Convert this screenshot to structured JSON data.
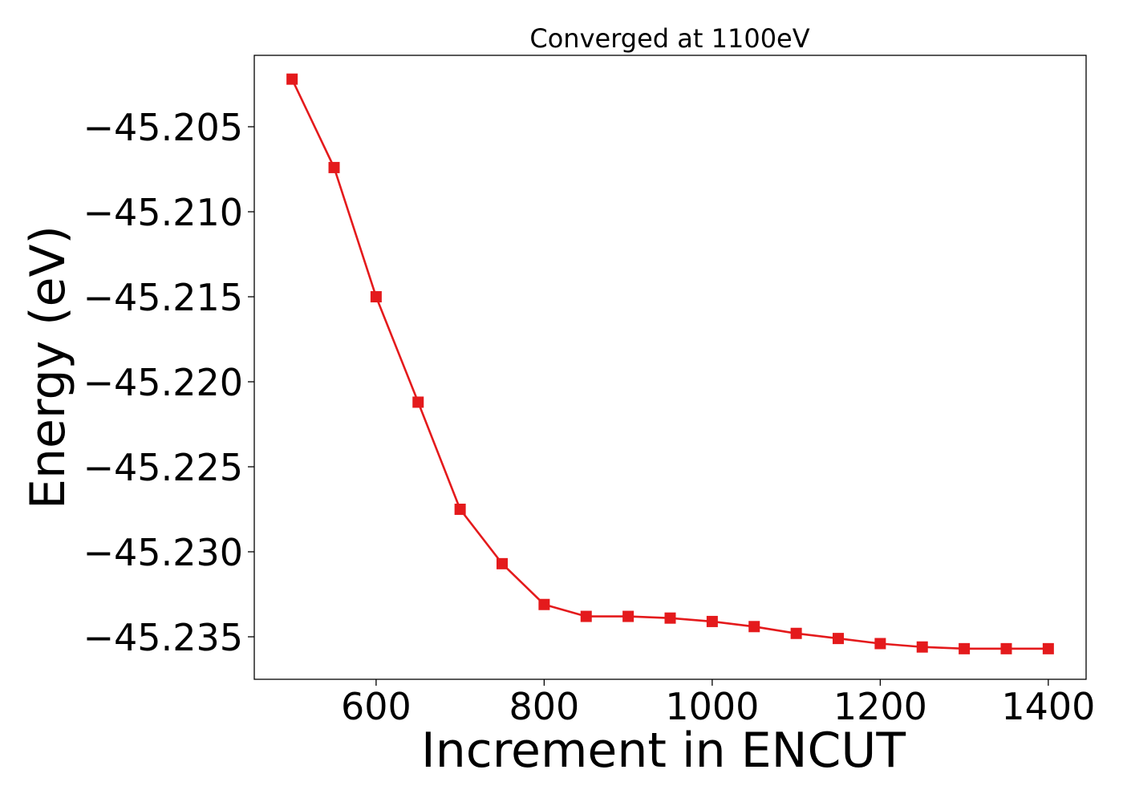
{
  "chart_data": {
    "type": "line",
    "title": "Converged at 1100eV",
    "xlabel": "Increment in ENCUT",
    "ylabel": "Energy (eV)",
    "xlim": [
      455,
      1445
    ],
    "ylim": [
      -45.2375,
      -45.2008
    ],
    "x_ticks": [
      600,
      800,
      1000,
      1200,
      1400
    ],
    "x_tick_labels": [
      "600",
      "800",
      "1000",
      "1200",
      "1400"
    ],
    "y_ticks": [
      -45.205,
      -45.21,
      -45.215,
      -45.22,
      -45.225,
      -45.23,
      -45.235
    ],
    "y_tick_labels": [
      "−45.205",
      "−45.210",
      "−45.215",
      "−45.220",
      "−45.225",
      "−45.230",
      "−45.235"
    ],
    "grid": false,
    "series": [
      {
        "color": "#e41a1c",
        "marker": "square",
        "x": [
          500,
          550,
          600,
          650,
          700,
          750,
          800,
          850,
          900,
          950,
          1000,
          1050,
          1100,
          1150,
          1200,
          1250,
          1300,
          1350,
          1400
        ],
        "values": [
          -45.2022,
          -45.2074,
          -45.215,
          -45.2212,
          -45.2275,
          -45.2307,
          -45.2331,
          -45.2338,
          -45.2338,
          -45.2339,
          -45.2341,
          -45.2344,
          -45.2348,
          -45.2351,
          -45.2354,
          -45.2356,
          -45.2357,
          -45.2357,
          -45.2357
        ]
      }
    ]
  }
}
